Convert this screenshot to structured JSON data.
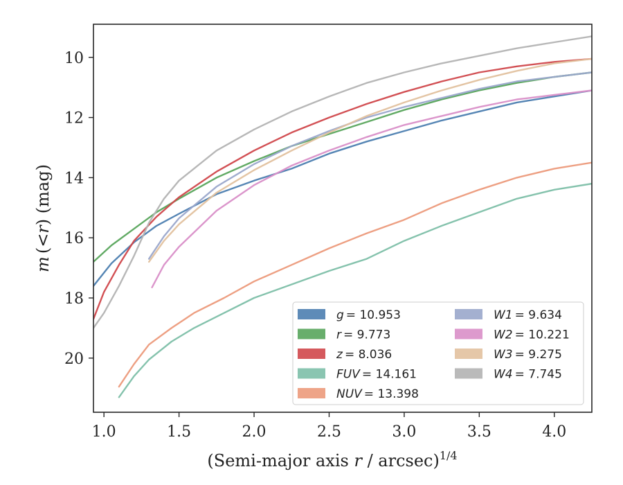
{
  "chart_data": {
    "type": "line",
    "xlabel_main": "(Semi-major axis ",
    "xlabel_var": "r",
    "xlabel_tail": " / arcsec)",
    "xlabel_sup": "1/4",
    "ylabel_var": "m",
    "ylabel_mid": "(<",
    "ylabel_var2": "r",
    "ylabel_tail": ") (mag)",
    "xlim": [
      0.93,
      4.25
    ],
    "ylim": [
      21.8,
      8.9
    ],
    "y_inverted": true,
    "xticks": [
      1.0,
      1.5,
      2.0,
      2.5,
      3.0,
      3.5,
      4.0
    ],
    "xtick_labels": [
      "1.0",
      "1.5",
      "2.0",
      "2.5",
      "3.0",
      "3.5",
      "4.0"
    ],
    "yticks": [
      10,
      12,
      14,
      16,
      18,
      20
    ],
    "ytick_labels": [
      "10",
      "12",
      "14",
      "16",
      "18",
      "20"
    ],
    "legend_placement": "lower-right",
    "legend_columns": 2,
    "series": [
      {
        "name": "g",
        "legend_value": "= 10.953",
        "color": "#4c7eb0",
        "points": [
          [
            0.93,
            17.6
          ],
          [
            1.05,
            16.85
          ],
          [
            1.2,
            16.15
          ],
          [
            1.35,
            15.6
          ],
          [
            1.5,
            15.2
          ],
          [
            1.75,
            14.55
          ],
          [
            2.0,
            14.1
          ],
          [
            2.25,
            13.7
          ],
          [
            2.5,
            13.2
          ],
          [
            2.75,
            12.8
          ],
          [
            3.0,
            12.45
          ],
          [
            3.25,
            12.1
          ],
          [
            3.5,
            11.8
          ],
          [
            3.75,
            11.5
          ],
          [
            4.0,
            11.3
          ],
          [
            4.25,
            11.1
          ]
        ]
      },
      {
        "name": "r",
        "legend_value": "= 9.773",
        "color": "#58a55c",
        "points": [
          [
            0.93,
            16.8
          ],
          [
            1.05,
            16.25
          ],
          [
            1.2,
            15.7
          ],
          [
            1.35,
            15.15
          ],
          [
            1.5,
            14.7
          ],
          [
            1.75,
            14.0
          ],
          [
            2.0,
            13.45
          ],
          [
            2.25,
            12.95
          ],
          [
            2.5,
            12.55
          ],
          [
            2.75,
            12.15
          ],
          [
            3.0,
            11.75
          ],
          [
            3.25,
            11.4
          ],
          [
            3.5,
            11.1
          ],
          [
            3.75,
            10.85
          ],
          [
            4.0,
            10.65
          ],
          [
            4.25,
            10.5
          ]
        ]
      },
      {
        "name": "z",
        "legend_value": "= 8.036",
        "color": "#d0474b",
        "points": [
          [
            0.93,
            18.7
          ],
          [
            1.0,
            17.8
          ],
          [
            1.1,
            16.9
          ],
          [
            1.2,
            16.1
          ],
          [
            1.35,
            15.3
          ],
          [
            1.5,
            14.65
          ],
          [
            1.75,
            13.8
          ],
          [
            2.0,
            13.1
          ],
          [
            2.25,
            12.5
          ],
          [
            2.5,
            12.0
          ],
          [
            2.75,
            11.55
          ],
          [
            3.0,
            11.15
          ],
          [
            3.25,
            10.8
          ],
          [
            3.5,
            10.5
          ],
          [
            3.75,
            10.3
          ],
          [
            4.0,
            10.15
          ],
          [
            4.25,
            10.05
          ]
        ]
      },
      {
        "name": "FUV",
        "legend_value": "= 14.161",
        "color": "#7dbfa8",
        "points": [
          [
            1.1,
            21.3
          ],
          [
            1.2,
            20.6
          ],
          [
            1.3,
            20.05
          ],
          [
            1.45,
            19.45
          ],
          [
            1.6,
            19.0
          ],
          [
            1.8,
            18.5
          ],
          [
            2.0,
            18.0
          ],
          [
            2.25,
            17.55
          ],
          [
            2.5,
            17.1
          ],
          [
            2.75,
            16.7
          ],
          [
            3.0,
            16.1
          ],
          [
            3.25,
            15.6
          ],
          [
            3.5,
            15.15
          ],
          [
            3.75,
            14.7
          ],
          [
            4.0,
            14.4
          ],
          [
            4.25,
            14.2
          ]
        ]
      },
      {
        "name": "NUV",
        "legend_value": "= 13.398",
        "color": "#ec9a7b",
        "points": [
          [
            1.1,
            20.95
          ],
          [
            1.2,
            20.2
          ],
          [
            1.3,
            19.55
          ],
          [
            1.45,
            19.0
          ],
          [
            1.6,
            18.5
          ],
          [
            1.8,
            18.0
          ],
          [
            2.0,
            17.45
          ],
          [
            2.25,
            16.9
          ],
          [
            2.5,
            16.35
          ],
          [
            2.75,
            15.85
          ],
          [
            3.0,
            15.4
          ],
          [
            3.25,
            14.85
          ],
          [
            3.5,
            14.4
          ],
          [
            3.75,
            14.0
          ],
          [
            4.0,
            13.7
          ],
          [
            4.25,
            13.5
          ]
        ]
      },
      {
        "name": "W1",
        "legend_value": "= 9.634",
        "color": "#9aa7cb",
        "points": [
          [
            1.3,
            16.7
          ],
          [
            1.4,
            15.95
          ],
          [
            1.5,
            15.35
          ],
          [
            1.75,
            14.3
          ],
          [
            2.0,
            13.55
          ],
          [
            2.25,
            12.95
          ],
          [
            2.5,
            12.45
          ],
          [
            2.75,
            12.0
          ],
          [
            3.0,
            11.65
          ],
          [
            3.25,
            11.35
          ],
          [
            3.5,
            11.05
          ],
          [
            3.75,
            10.8
          ],
          [
            4.0,
            10.65
          ],
          [
            4.25,
            10.5
          ]
        ]
      },
      {
        "name": "W2",
        "legend_value": "= 10.221",
        "color": "#d98fc8",
        "points": [
          [
            1.32,
            17.65
          ],
          [
            1.4,
            16.9
          ],
          [
            1.5,
            16.3
          ],
          [
            1.75,
            15.1
          ],
          [
            2.0,
            14.25
          ],
          [
            2.25,
            13.6
          ],
          [
            2.5,
            13.1
          ],
          [
            2.75,
            12.65
          ],
          [
            3.0,
            12.25
          ],
          [
            3.25,
            11.95
          ],
          [
            3.5,
            11.65
          ],
          [
            3.75,
            11.4
          ],
          [
            4.0,
            11.25
          ],
          [
            4.25,
            11.1
          ]
        ]
      },
      {
        "name": "W3",
        "legend_value": "= 9.275",
        "color": "#e2c19e",
        "points": [
          [
            1.3,
            16.8
          ],
          [
            1.4,
            16.1
          ],
          [
            1.5,
            15.55
          ],
          [
            1.75,
            14.5
          ],
          [
            2.0,
            13.75
          ],
          [
            2.25,
            13.1
          ],
          [
            2.5,
            12.5
          ],
          [
            2.75,
            11.95
          ],
          [
            3.0,
            11.5
          ],
          [
            3.25,
            11.1
          ],
          [
            3.5,
            10.75
          ],
          [
            3.75,
            10.45
          ],
          [
            4.0,
            10.2
          ],
          [
            4.25,
            10.05
          ]
        ]
      },
      {
        "name": "W4",
        "legend_value": "= 7.745",
        "color": "#b3b3b3",
        "points": [
          [
            0.93,
            19.0
          ],
          [
            1.0,
            18.5
          ],
          [
            1.1,
            17.6
          ],
          [
            1.2,
            16.6
          ],
          [
            1.3,
            15.5
          ],
          [
            1.4,
            14.7
          ],
          [
            1.5,
            14.1
          ],
          [
            1.75,
            13.1
          ],
          [
            2.0,
            12.4
          ],
          [
            2.25,
            11.8
          ],
          [
            2.5,
            11.3
          ],
          [
            2.75,
            10.85
          ],
          [
            3.0,
            10.5
          ],
          [
            3.25,
            10.2
          ],
          [
            3.5,
            9.95
          ],
          [
            3.75,
            9.7
          ],
          [
            4.0,
            9.5
          ],
          [
            4.25,
            9.3
          ]
        ]
      }
    ]
  }
}
